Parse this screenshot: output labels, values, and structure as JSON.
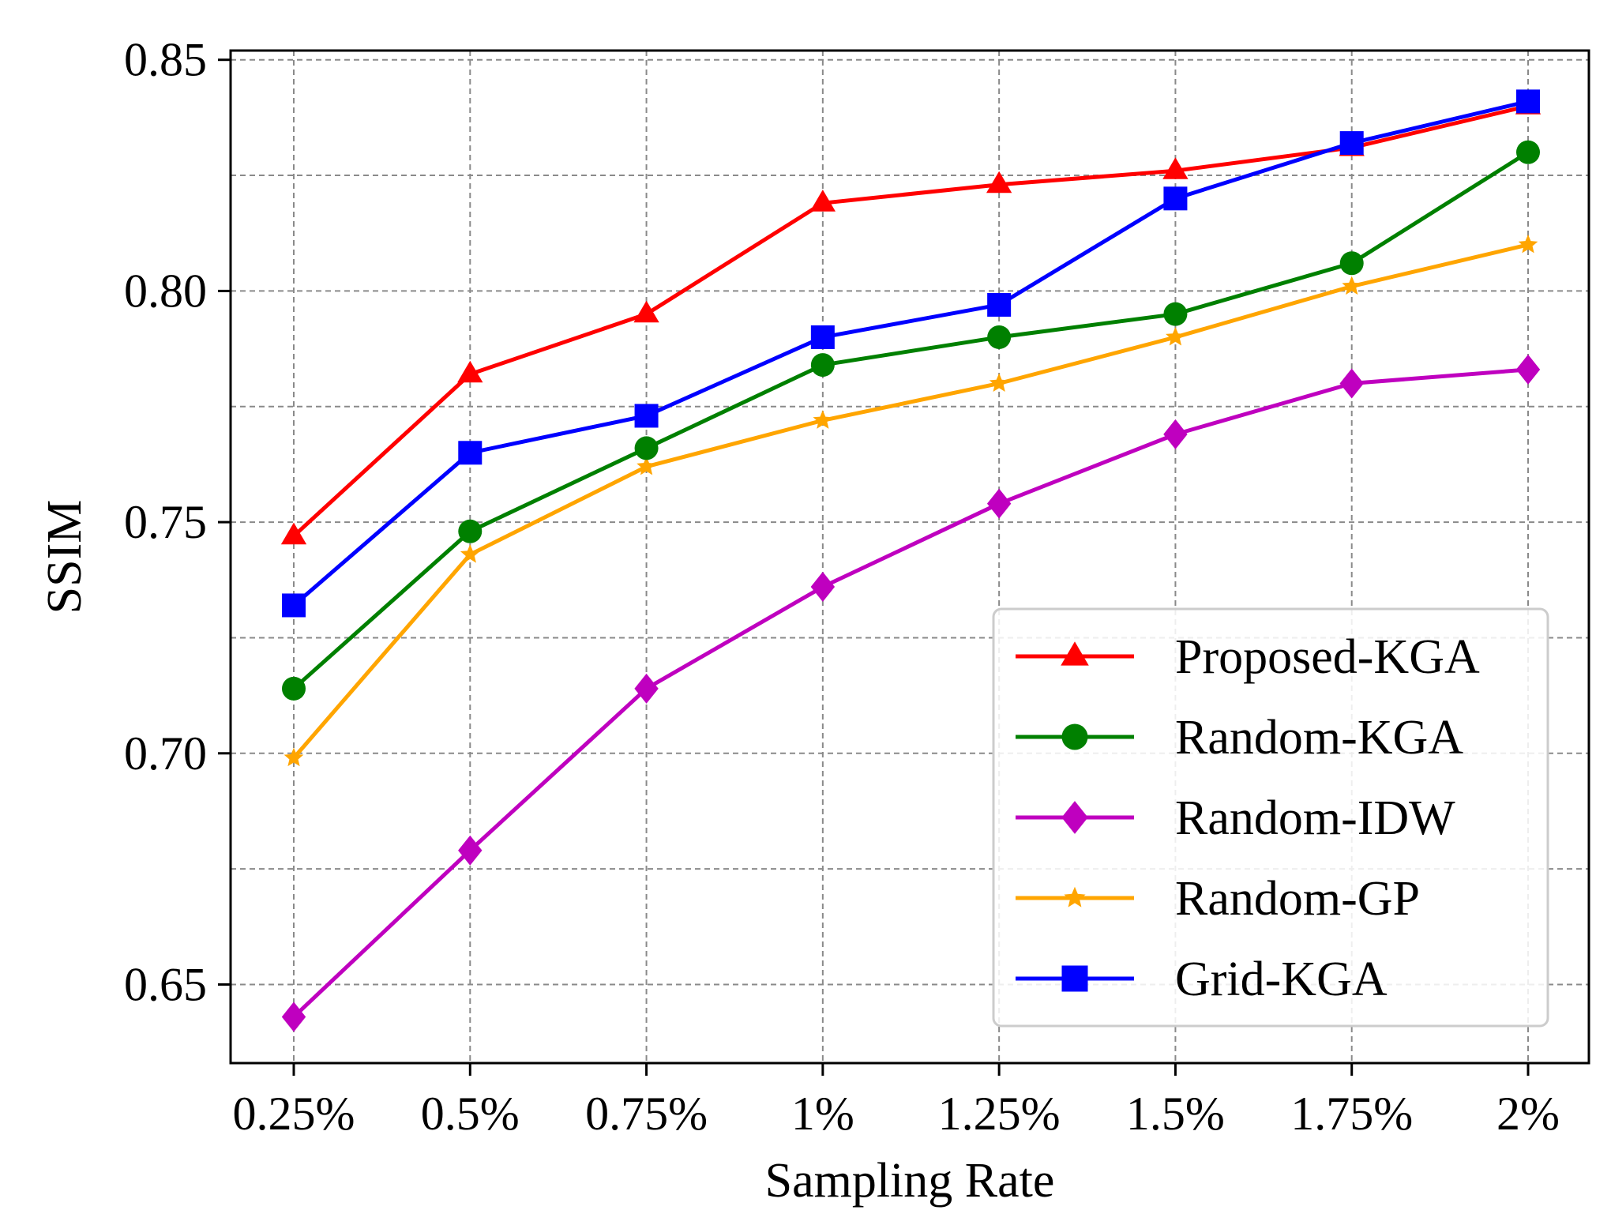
{
  "chart_data": {
    "type": "line",
    "title": "",
    "xlabel": "Sampling Rate",
    "ylabel": "SSIM",
    "categories": [
      "0.25%",
      "0.5%",
      "0.75%",
      "1%",
      "1.25%",
      "1.5%",
      "1.75%",
      "2%"
    ],
    "ylim": [
      0.633,
      0.852
    ],
    "yticks": [
      0.65,
      0.7,
      0.75,
      0.8,
      0.85
    ],
    "ytick_labels": [
      "0.65",
      "0.70",
      "0.75",
      "0.80",
      "0.85"
    ],
    "minor_grid_y": [
      0.675,
      0.725,
      0.775,
      0.825
    ],
    "grid": true,
    "legend_position": "lower-right",
    "series": [
      {
        "name": "Proposed-KGA",
        "color": "#ff0000",
        "marker": "triangle",
        "values": [
          0.747,
          0.782,
          0.795,
          0.819,
          0.823,
          0.826,
          0.831,
          0.84
        ]
      },
      {
        "name": "Random-KGA",
        "color": "#008000",
        "marker": "circle",
        "values": [
          0.714,
          0.748,
          0.766,
          0.784,
          0.79,
          0.795,
          0.806,
          0.83
        ]
      },
      {
        "name": "Random-IDW",
        "color": "#bf00bf",
        "marker": "diamond",
        "values": [
          0.643,
          0.679,
          0.714,
          0.736,
          0.754,
          0.769,
          0.78,
          0.783
        ]
      },
      {
        "name": "Random-GP",
        "color": "#ffa500",
        "marker": "star",
        "values": [
          0.699,
          0.743,
          0.762,
          0.772,
          0.78,
          0.79,
          0.801,
          0.81
        ]
      },
      {
        "name": "Grid-KGA",
        "color": "#0000ff",
        "marker": "square",
        "values": [
          0.732,
          0.765,
          0.773,
          0.79,
          0.797,
          0.82,
          0.832,
          0.841
        ]
      }
    ]
  }
}
